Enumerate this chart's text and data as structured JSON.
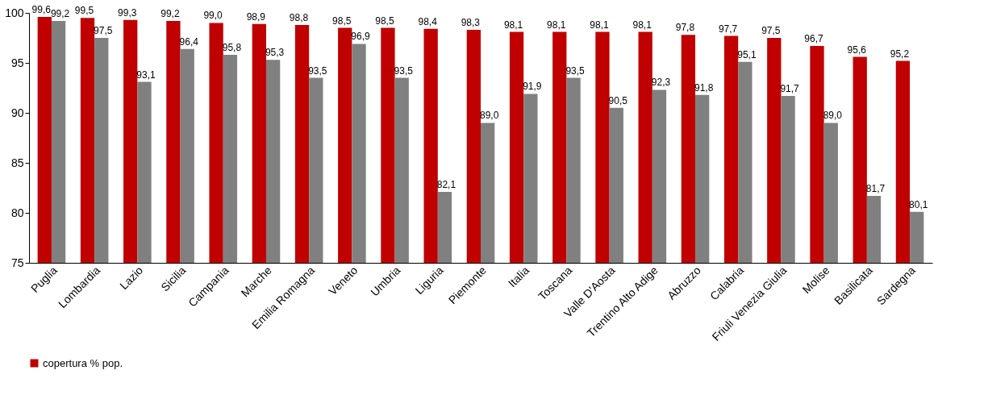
{
  "chart_data": {
    "type": "bar",
    "categories": [
      "Puglia",
      "Lombardia",
      "Lazio",
      "Sicilia",
      "Campania",
      "Marche",
      "Emilia Romagna",
      "Veneto",
      "Umbria",
      "Liguria",
      "Piemonte",
      "Italia",
      "Toscana",
      "Valle D'Aosta",
      "Trentino Alto Adige",
      "Abruzzo",
      "Calabria",
      "Friuli Venezia Giulia",
      "Molise",
      "Basilicata",
      "Sardegna"
    ],
    "series": [
      {
        "name": "copertura % pop.",
        "color": "#c00000",
        "values": [
          99.6,
          99.5,
          99.3,
          99.2,
          99.0,
          98.9,
          98.8,
          98.5,
          98.5,
          98.4,
          98.3,
          98.1,
          98.1,
          98.1,
          98.1,
          97.8,
          97.7,
          97.5,
          96.7,
          95.6,
          95.2
        ],
        "value_labels": [
          "99,6",
          "99,5",
          "99,3",
          "99,2",
          "99,0",
          "98,9",
          "98,8",
          "98,5",
          "98,5",
          "98,4",
          "98,3",
          "98,1",
          "98,1",
          "98,1",
          "98,1",
          "97,8",
          "97,7",
          "97,5",
          "96,7",
          "95,6",
          "95,2"
        ]
      },
      {
        "color": "#808080",
        "values": [
          99.2,
          97.5,
          93.1,
          96.4,
          95.8,
          95.3,
          93.5,
          96.9,
          93.5,
          82.1,
          89.0,
          91.9,
          93.5,
          90.5,
          92.3,
          91.8,
          95.1,
          91.7,
          89.0,
          81.7,
          80.1
        ],
        "value_labels": [
          "99,2",
          "97,5",
          "93,1",
          "96,4",
          "95,8",
          "95,3",
          "93,5",
          "96,9",
          "93,5",
          "82,1",
          "89,0",
          "91,9",
          "93,5",
          "90,5",
          "92,3",
          "91,8",
          "95,1",
          "91,7",
          "89,0",
          "81,7",
          "80,1"
        ]
      }
    ],
    "ylim": [
      75,
      100
    ],
    "yticks": [
      75,
      80,
      85,
      90,
      95,
      100
    ],
    "grid": false,
    "legend": "bottom"
  }
}
